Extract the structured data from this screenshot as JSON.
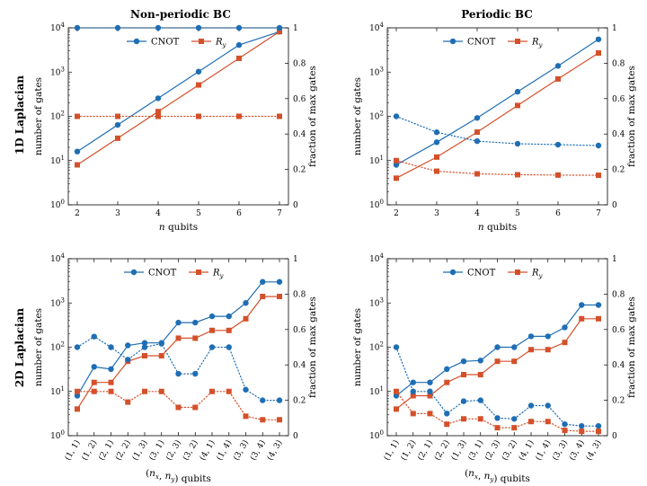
{
  "figure": {
    "column_titles": [
      "Non-periodic BC",
      "Periodic BC"
    ],
    "row_titles": [
      "1D Laplacian",
      "2D Laplacian"
    ]
  },
  "colors": {
    "cnot": "#1f6eb4",
    "ry": "#d4502a"
  },
  "chart_data": [
    {
      "type": "line",
      "panel": "top-left",
      "xlabel": "n qubits",
      "ylabel": "number of gates",
      "y2label": "fraction of max gates",
      "yscale": "log",
      "ylim": [
        1,
        10000
      ],
      "y2lim": [
        0,
        1
      ],
      "yticks": [
        "10^0",
        "10^1",
        "10^2",
        "10^3",
        "10^4"
      ],
      "y2ticks": [
        "0",
        "0.2",
        "0.4",
        "0.6",
        "0.8",
        "1"
      ],
      "x": [
        "2",
        "3",
        "4",
        "5",
        "6",
        "7"
      ],
      "legend": [
        "CNOT",
        "R_y"
      ],
      "legend_position": "top-right",
      "series": [
        {
          "name": "CNOT",
          "axis": "left",
          "style": "solid",
          "marker": "circle",
          "values": [
            16,
            64,
            256,
            1024,
            4096,
            8192
          ]
        },
        {
          "name": "R_y",
          "axis": "left",
          "style": "solid",
          "marker": "square",
          "values": [
            8,
            32,
            128,
            512,
            2048,
            8192
          ]
        },
        {
          "axis": "right",
          "style": "dotted",
          "marker": "circle",
          "color": "cnot",
          "values": [
            1,
            1,
            1,
            1,
            1,
            1
          ]
        },
        {
          "axis": "right",
          "style": "dotted",
          "marker": "square",
          "color": "ry",
          "values": [
            0.5,
            0.5,
            0.5,
            0.5,
            0.5,
            0.5
          ]
        }
      ]
    },
    {
      "type": "line",
      "panel": "top-right",
      "xlabel": "n qubits",
      "ylabel": "number of gates",
      "y2label": "fraction of max gates",
      "yscale": "log",
      "ylim": [
        1,
        10000
      ],
      "y2lim": [
        0,
        1
      ],
      "yticks": [
        "10^0",
        "10^1",
        "10^2",
        "10^3",
        "10^4"
      ],
      "y2ticks": [
        "0",
        "0.2",
        "0.4",
        "0.6",
        "0.8",
        "1"
      ],
      "x": [
        "2",
        "3",
        "4",
        "5",
        "6",
        "7"
      ],
      "legend": [
        "CNOT",
        "R_y"
      ],
      "legend_position": "top-center",
      "series": [
        {
          "name": "CNOT",
          "axis": "left",
          "style": "solid",
          "marker": "circle",
          "values": [
            8,
            26,
            92,
            360,
            1380,
            5500
          ]
        },
        {
          "name": "R_y",
          "axis": "left",
          "style": "solid",
          "marker": "square",
          "values": [
            4,
            12,
            44,
            176,
            700,
            2700
          ]
        },
        {
          "axis": "right",
          "style": "dotted",
          "marker": "circle",
          "color": "cnot",
          "values": [
            0.5,
            0.41,
            0.36,
            0.345,
            0.34,
            0.335
          ]
        },
        {
          "axis": "right",
          "style": "dotted",
          "marker": "square",
          "color": "ry",
          "values": [
            0.25,
            0.19,
            0.175,
            0.17,
            0.168,
            0.167
          ]
        }
      ]
    },
    {
      "type": "line",
      "panel": "bottom-left",
      "xlabel": "(n_x, n_y) qubits",
      "ylabel": "number of gates",
      "y2label": "fraction of max gates",
      "yscale": "log",
      "ylim": [
        1,
        10000
      ],
      "y2lim": [
        0,
        1
      ],
      "yticks": [
        "10^0",
        "10^1",
        "10^2",
        "10^3",
        "10^4"
      ],
      "y2ticks": [
        "0",
        "0.2",
        "0.4",
        "0.6",
        "0.8",
        "1"
      ],
      "x": [
        "(1, 1)",
        "(1, 2)",
        "(2, 1)",
        "(2, 2)",
        "(1, 3)",
        "(3, 1)",
        "(2, 3)",
        "(3, 2)",
        "(4, 1)",
        "(1, 4)",
        "(3, 3)",
        "(3, 4)",
        "(4, 3)"
      ],
      "legend": [
        "CNOT",
        "R_y"
      ],
      "legend_position": "top-center",
      "series": [
        {
          "name": "CNOT",
          "axis": "left",
          "style": "solid",
          "marker": "circle",
          "values": [
            8,
            36,
            32,
            110,
            125,
            125,
            360,
            360,
            500,
            500,
            1000,
            3000,
            3000
          ]
        },
        {
          "name": "R_y",
          "axis": "left",
          "style": "solid",
          "marker": "square",
          "values": [
            4,
            16,
            16,
            48,
            64,
            64,
            160,
            160,
            240,
            240,
            440,
            1400,
            1400
          ]
        },
        {
          "axis": "right",
          "style": "dotted",
          "marker": "circle",
          "color": "cnot",
          "values": [
            0.5,
            0.56,
            0.5,
            0.43,
            0.5,
            0.52,
            0.35,
            0.35,
            0.5,
            0.5,
            0.26,
            0.2,
            0.2
          ]
        },
        {
          "axis": "right",
          "style": "dotted",
          "marker": "square",
          "color": "ry",
          "values": [
            0.25,
            0.25,
            0.25,
            0.19,
            0.25,
            0.25,
            0.16,
            0.16,
            0.25,
            0.25,
            0.11,
            0.09,
            0.09
          ]
        }
      ]
    },
    {
      "type": "line",
      "panel": "bottom-right",
      "xlabel": "(n_x, n_y) qubits",
      "ylabel": "number of gates",
      "y2label": "fraction of max gates",
      "yscale": "log",
      "ylim": [
        1,
        10000
      ],
      "y2lim": [
        0,
        1
      ],
      "yticks": [
        "10^0",
        "10^1",
        "10^2",
        "10^3",
        "10^4"
      ],
      "y2ticks": [
        "0",
        "0.2",
        "0.4",
        "0.6",
        "0.8",
        "1"
      ],
      "x": [
        "(1, 1)",
        "(1, 2)",
        "(2, 1)",
        "(2, 2)",
        "(1, 3)",
        "(3, 1)",
        "(2, 3)",
        "(3, 2)",
        "(4, 1)",
        "(1, 4)",
        "(3, 3)",
        "(3, 4)",
        "(4, 3)"
      ],
      "legend": [
        "CNOT",
        "R_y"
      ],
      "legend_position": "top-center",
      "series": [
        {
          "name": "CNOT",
          "axis": "left",
          "style": "solid",
          "marker": "circle",
          "values": [
            8,
            16,
            16,
            32,
            48,
            50,
            100,
            100,
            176,
            176,
            280,
            900,
            900
          ]
        },
        {
          "name": "R_y",
          "axis": "left",
          "style": "solid",
          "marker": "square",
          "values": [
            4,
            8,
            8,
            16,
            24,
            24,
            48,
            48,
            88,
            88,
            128,
            440,
            440
          ]
        },
        {
          "axis": "right",
          "style": "dotted",
          "marker": "circle",
          "color": "cnot",
          "values": [
            0.5,
            0.25,
            0.25,
            0.125,
            0.195,
            0.2,
            0.1,
            0.095,
            0.17,
            0.17,
            0.065,
            0.055,
            0.055
          ]
        },
        {
          "axis": "right",
          "style": "dotted",
          "marker": "square",
          "color": "ry",
          "values": [
            0.25,
            0.125,
            0.125,
            0.065,
            0.095,
            0.095,
            0.045,
            0.045,
            0.08,
            0.08,
            0.03,
            0.025,
            0.025
          ]
        }
      ]
    }
  ]
}
